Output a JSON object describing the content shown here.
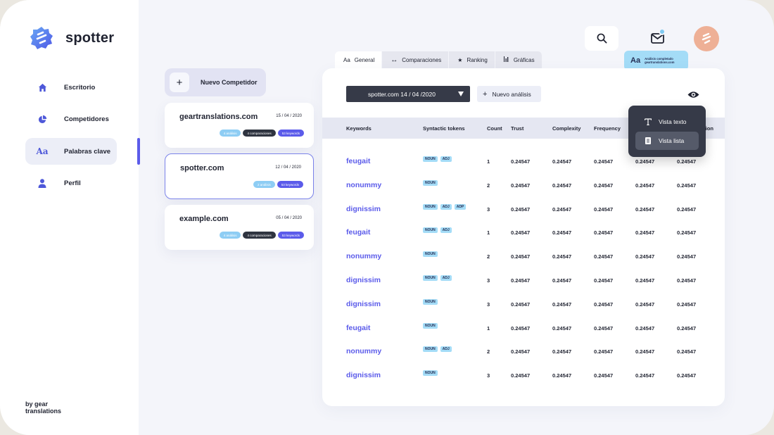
{
  "app": {
    "name": "spotter",
    "footer": [
      "by gear",
      "translations"
    ]
  },
  "sidebar": {
    "items": [
      {
        "label": "Escritorio",
        "icon": "home-icon"
      },
      {
        "label": "Competidores",
        "icon": "pie-chart-icon"
      },
      {
        "label": "Palabras clave",
        "icon": "font-icon",
        "active": true
      },
      {
        "label": "Perfil",
        "icon": "user-icon"
      }
    ]
  },
  "header": {
    "notification": {
      "icon": "Aa",
      "lines": [
        "Análisis completado",
        "geartranslations.com"
      ]
    }
  },
  "competitors": {
    "new_label": "Nuevo Competidor",
    "cards": [
      {
        "name": "geartranslations.com",
        "date": "15 / 04 / 2020",
        "badges": [
          "4 análisis",
          "4 comparaciones",
          "53 keywords"
        ]
      },
      {
        "name": "spotter.com",
        "date": "12 / 04 / 2020",
        "badges": [
          "2 análisis",
          "53 keywords"
        ],
        "selected": true
      },
      {
        "name": "example.com",
        "date": "05 / 04 / 2020",
        "badges": [
          "4 análisis",
          "4 comparaciones",
          "53 keywords"
        ]
      }
    ]
  },
  "tabs": [
    {
      "label": "General",
      "icon": "Aa",
      "active": true
    },
    {
      "label": "Comparaciones",
      "icon": "↔"
    },
    {
      "label": "Ranking",
      "icon": "★"
    },
    {
      "label": "Gráficas",
      "icon": "bar-chart-icon"
    }
  ],
  "panel": {
    "select_value": "spotter.com 14 / 04 /2020",
    "new_analysis_label": "Nuevo análisis"
  },
  "table": {
    "columns": [
      "Keywords",
      "Syntactic tokens",
      "Count",
      "Trust",
      "Complexity",
      "Frequency",
      "",
      "ation"
    ],
    "rows": [
      {
        "keyword": "feugait",
        "tokens": [
          "NOUN",
          "ADJ"
        ],
        "count": "1",
        "values": [
          "0.24547",
          "0.24547",
          "0.24547",
          "0.24547",
          "0.24547"
        ]
      },
      {
        "keyword": "nonummy",
        "tokens": [
          "NOUN"
        ],
        "count": "2",
        "values": [
          "0.24547",
          "0.24547",
          "0.24547",
          "0.24547",
          "0.24547"
        ]
      },
      {
        "keyword": "dignissim",
        "tokens": [
          "NOUN",
          "ADJ",
          "ADP"
        ],
        "count": "3",
        "values": [
          "0.24547",
          "0.24547",
          "0.24547",
          "0.24547",
          "0.24547"
        ]
      },
      {
        "keyword": "feugait",
        "tokens": [
          "NOUN",
          "ADJ"
        ],
        "count": "1",
        "values": [
          "0.24547",
          "0.24547",
          "0.24547",
          "0.24547",
          "0.24547"
        ]
      },
      {
        "keyword": "nonummy",
        "tokens": [
          "NOUN"
        ],
        "count": "2",
        "values": [
          "0.24547",
          "0.24547",
          "0.24547",
          "0.24547",
          "0.24547"
        ]
      },
      {
        "keyword": "dignissim",
        "tokens": [
          "NOUN",
          "ADJ"
        ],
        "count": "3",
        "values": [
          "0.24547",
          "0.24547",
          "0.24547",
          "0.24547",
          "0.24547"
        ]
      },
      {
        "keyword": "dignissim",
        "tokens": [
          "NOUN"
        ],
        "count": "3",
        "values": [
          "0.24547",
          "0.24547",
          "0.24547",
          "0.24547",
          "0.24547"
        ]
      },
      {
        "keyword": "feugait",
        "tokens": [
          "NOUN"
        ],
        "count": "1",
        "values": [
          "0.24547",
          "0.24547",
          "0.24547",
          "0.24547",
          "0.24547"
        ]
      },
      {
        "keyword": "nonummy",
        "tokens": [
          "NOUN",
          "ADJ"
        ],
        "count": "2",
        "values": [
          "0.24547",
          "0.24547",
          "0.24547",
          "0.24547",
          "0.24547"
        ]
      },
      {
        "keyword": "dignissim",
        "tokens": [
          "NOUN"
        ],
        "count": "3",
        "values": [
          "0.24547",
          "0.24547",
          "0.24547",
          "0.24547",
          "0.24547"
        ]
      }
    ]
  },
  "view_menu": {
    "items": [
      {
        "label": "Vista texto",
        "icon": "text-icon"
      },
      {
        "label": "Vista lista",
        "icon": "list-icon",
        "active": true
      }
    ]
  },
  "colors": {
    "accent": "#5b5bea",
    "token": "#a4dcf7",
    "dark": "#363a48",
    "avatar": "#eeb096"
  }
}
